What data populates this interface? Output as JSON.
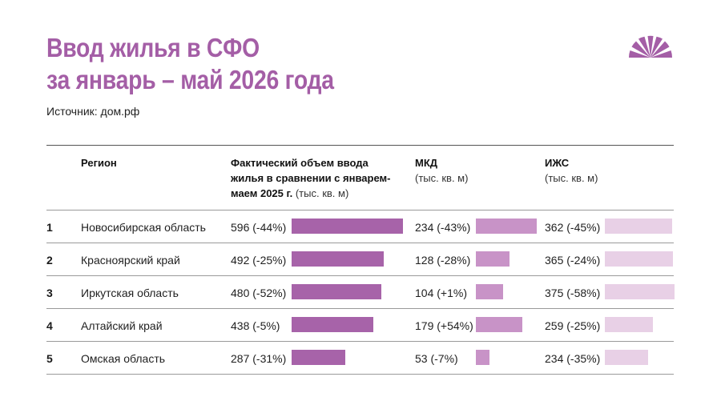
{
  "header": {
    "title_line1": "Ввод жилья в СФО",
    "title_line2": "за январь – май 2026 года",
    "source": "Источник: дом.рф",
    "logo_icon": "half-sun-logo-icon"
  },
  "columns": {
    "region": "Регион",
    "total_l1": "Фактический объем ввода",
    "total_l2": "жилья в сравнении с январем-",
    "total_l3_bold": "маем 2025 г.",
    "total_l3_unit": " (тыс. кв. м)",
    "mkd": "МКД",
    "mkd_unit": "(тыс. кв. м)",
    "izhs": "ИЖС",
    "izhs_unit": "(тыс. кв. м)"
  },
  "colors": {
    "title": "#a45ea6",
    "bar_total": "#a763a9",
    "bar_mkd": "#c893c7",
    "bar_izhs": "#e8d0e6"
  },
  "chart_data": {
    "type": "bar",
    "categories": [
      "Новосибирская область",
      "Красноярский край",
      "Иркутская область",
      "Алтайский край",
      "Омская область"
    ],
    "series": [
      {
        "name": "Фактический объем ввода жилья в сравнении с январем-маем 2025 г. (тыс. кв. м)",
        "values": [
          596,
          492,
          480,
          438,
          287
        ]
      },
      {
        "name": "МКД (тыс. кв. м)",
        "values": [
          234,
          128,
          104,
          179,
          53
        ]
      },
      {
        "name": "ИЖС (тыс. кв. м)",
        "values": [
          362,
          365,
          375,
          259,
          234
        ]
      }
    ]
  },
  "rows": [
    {
      "rank": "1",
      "region": "Новосибирская область",
      "total": 596,
      "total_label": "596 (-44%)",
      "mkd": 234,
      "mkd_label": "234 (-43%)",
      "izhs": 362,
      "izhs_label": "362 (-45%)"
    },
    {
      "rank": "2",
      "region": "Красноярский край",
      "total": 492,
      "total_label": "492 (-25%)",
      "mkd": 128,
      "mkd_label": "128 (-28%)",
      "izhs": 365,
      "izhs_label": "365 (-24%)"
    },
    {
      "rank": "3",
      "region": "Иркутская область",
      "total": 480,
      "total_label": "480 (-52%)",
      "mkd": 104,
      "mkd_label": "104 (+1%)",
      "izhs": 375,
      "izhs_label": "375 (-58%)"
    },
    {
      "rank": "4",
      "region": "Алтайский край",
      "total": 438,
      "total_label": "438 (-5%)",
      "mkd": 179,
      "mkd_label": "179 (+54%)",
      "izhs": 259,
      "izhs_label": "259 (-25%)"
    },
    {
      "rank": "5",
      "region": "Омская область",
      "total": 287,
      "total_label": "287 (-31%)",
      "mkd": 53,
      "mkd_label": "53 (-7%)",
      "izhs": 234,
      "izhs_label": "234 (-35%)"
    }
  ]
}
